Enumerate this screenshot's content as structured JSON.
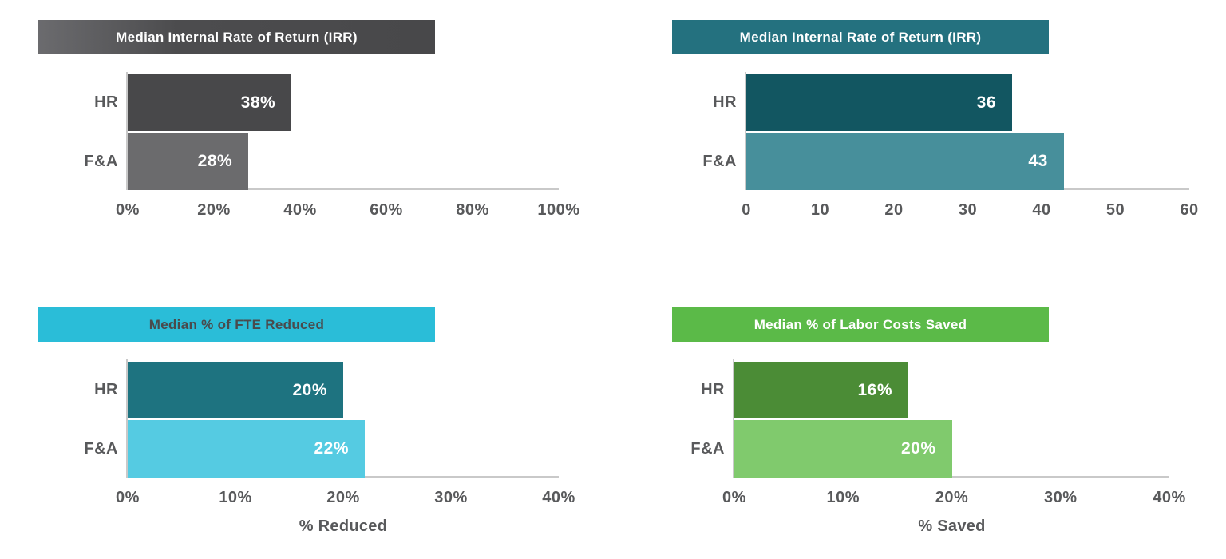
{
  "style": {
    "background": "#ffffff",
    "axis_line_color": "#c9c9c9",
    "axis_text_color": "#58595b",
    "bar_value_text_color": "#ffffff"
  },
  "chart_data": [
    {
      "id": "irr-percent",
      "type": "bar",
      "orientation": "horizontal",
      "title": "Median Internal Rate of Return (IRR)",
      "title_color": "#ffffff",
      "header_gradient": [
        "#6b6b6e",
        "#4c4c4e 35%",
        "#48484a"
      ],
      "categories": [
        "HR",
        "F&A"
      ],
      "values": [
        38,
        28
      ],
      "value_labels": [
        "38%",
        "28%"
      ],
      "bar_colors": [
        "#48484a",
        "#6b6b6d"
      ],
      "xlim": [
        0,
        100
      ],
      "ticks": [
        "0%",
        "20%",
        "40%",
        "60%",
        "80%",
        "100%"
      ],
      "xlabel": "",
      "grid": false,
      "legend": false
    },
    {
      "id": "irr-points",
      "type": "bar",
      "orientation": "horizontal",
      "title": "Median Internal Rate of Return (IRR)",
      "title_color": "#ffffff",
      "header_color": "#24717f",
      "categories": [
        "HR",
        "F&A"
      ],
      "values": [
        36,
        43
      ],
      "value_labels": [
        "36",
        "43"
      ],
      "bar_colors": [
        "#125661",
        "#478f9b"
      ],
      "xlim": [
        0,
        60
      ],
      "ticks": [
        "0",
        "10",
        "20",
        "30",
        "40",
        "50",
        "60"
      ],
      "xlabel": "",
      "grid": false,
      "legend": false
    },
    {
      "id": "fte-reduced",
      "type": "bar",
      "orientation": "horizontal",
      "title": "Median % of FTE Reduced",
      "title_color": "#4a4a4c",
      "header_color": "#2abdd8",
      "categories": [
        "HR",
        "F&A"
      ],
      "values": [
        20,
        22
      ],
      "value_labels": [
        "20%",
        "22%"
      ],
      "bar_colors": [
        "#1e7380",
        "#55cbe2"
      ],
      "xlim": [
        0,
        40
      ],
      "ticks": [
        "0%",
        "10%",
        "20%",
        "30%",
        "40%"
      ],
      "xlabel": "% Reduced",
      "grid": false,
      "legend": false
    },
    {
      "id": "labor-costs-saved",
      "type": "bar",
      "orientation": "horizontal",
      "title": "Median % of Labor Costs Saved",
      "title_color": "#ffffff",
      "header_color": "#5bba48",
      "categories": [
        "HR",
        "F&A"
      ],
      "values": [
        16,
        20
      ],
      "value_labels": [
        "16%",
        "20%"
      ],
      "bar_colors": [
        "#4b8c36",
        "#80ca6d"
      ],
      "xlim": [
        0,
        40
      ],
      "ticks": [
        "0%",
        "10%",
        "20%",
        "30%",
        "40%"
      ],
      "xlabel": "% Saved",
      "grid": false,
      "legend": false
    }
  ]
}
